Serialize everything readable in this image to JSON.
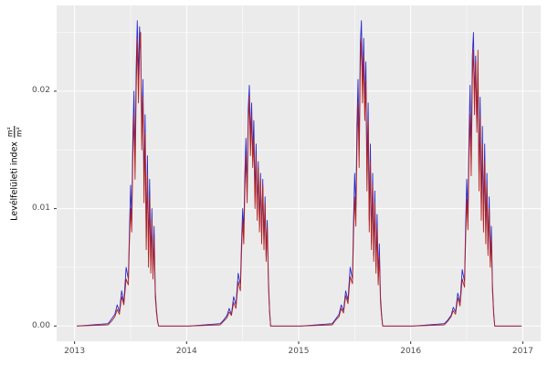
{
  "colors": {
    "figure_bg": "#FFFFFF",
    "panel_bg": "#EBEBEB",
    "grid_major": "#FFFFFF",
    "grid_minor": "#FFFFFF",
    "axis_text": "#4D4D4D",
    "tick_mark": "#333333",
    "series_blue": "#2929CC",
    "series_red": "#B22222"
  },
  "chart_data": {
    "type": "line",
    "title": "",
    "xlabel": "",
    "ylabel_text": "Levélfelületi index",
    "ylabel_frac_numerator": "m²",
    "ylabel_frac_denominator": "m²",
    "grid": true,
    "legend": "none",
    "xlim": [
      2012.84,
      2017.16
    ],
    "ylim": [
      -0.0013,
      0.0273
    ],
    "x_ticks": [
      2013,
      2014,
      2015,
      2016,
      2017
    ],
    "x_tick_labels": [
      "2013",
      "2014",
      "2015",
      "2016",
      "2017"
    ],
    "x_minor_ticks": [
      2013.5,
      2014.5,
      2015.5,
      2016.5
    ],
    "y_ticks": [
      0,
      0.01,
      0.02
    ],
    "y_tick_labels": [
      "0.00",
      "0.01",
      "0.02"
    ],
    "y_minor_ticks": [
      0.005,
      0.015,
      0.025
    ],
    "series": [
      {
        "name": "series-blue",
        "key": "blue",
        "color": "#2929CC"
      },
      {
        "name": "series-red",
        "key": "red",
        "color": "#B22222"
      }
    ],
    "season_offsets": [
      0.02,
      0.3,
      0.33,
      0.36,
      0.38,
      0.4,
      0.42,
      0.44,
      0.46,
      0.48,
      0.49,
      0.5,
      0.51,
      0.52,
      0.53,
      0.54,
      0.55,
      0.56,
      0.57,
      0.58,
      0.59,
      0.6,
      0.61,
      0.62,
      0.63,
      0.64,
      0.65,
      0.66,
      0.67,
      0.68,
      0.69,
      0.7,
      0.71,
      0.72,
      0.73,
      0.74,
      0.75,
      0.99
    ],
    "seasons": [
      {
        "year": 2013,
        "blue": [
          0,
          0.0002,
          0.0006,
          0.001,
          0.0018,
          0.0012,
          0.003,
          0.002,
          0.005,
          0.004,
          0.008,
          0.012,
          0.009,
          0.016,
          0.02,
          0.014,
          0.022,
          0.026,
          0.021,
          0.0255,
          0.0235,
          0.0165,
          0.021,
          0.012,
          0.018,
          0.0075,
          0.0145,
          0.006,
          0.0125,
          0.0055,
          0.01,
          0.0045,
          0.0085,
          0.003,
          0.0015,
          0.0005,
          0,
          0
        ],
        "red": [
          0,
          0.0001,
          0.0004,
          0.0008,
          0.0014,
          0.001,
          0.0025,
          0.0018,
          0.004,
          0.0035,
          0.007,
          0.01,
          0.008,
          0.014,
          0.018,
          0.0125,
          0.02,
          0.0245,
          0.019,
          0.0235,
          0.025,
          0.015,
          0.0195,
          0.0105,
          0.0165,
          0.0065,
          0.013,
          0.005,
          0.011,
          0.0045,
          0.009,
          0.004,
          0.0075,
          0.0025,
          0.0012,
          0.0004,
          0,
          0
        ]
      },
      {
        "year": 2014,
        "blue": [
          0,
          0.0002,
          0.0005,
          0.0009,
          0.0015,
          0.001,
          0.0025,
          0.0018,
          0.0045,
          0.0035,
          0.007,
          0.01,
          0.008,
          0.013,
          0.016,
          0.0115,
          0.0185,
          0.0205,
          0.016,
          0.019,
          0.0145,
          0.0175,
          0.011,
          0.0155,
          0.0095,
          0.014,
          0.0085,
          0.013,
          0.0075,
          0.0125,
          0.007,
          0.011,
          0.006,
          0.009,
          0.004,
          0.0015,
          0,
          0
        ],
        "red": [
          0,
          0.0001,
          0.0004,
          0.0007,
          0.0012,
          0.0009,
          0.002,
          0.0015,
          0.0038,
          0.003,
          0.006,
          0.009,
          0.007,
          0.0115,
          0.0145,
          0.0105,
          0.017,
          0.0195,
          0.0145,
          0.018,
          0.0135,
          0.016,
          0.01,
          0.0145,
          0.009,
          0.0135,
          0.008,
          0.0125,
          0.007,
          0.012,
          0.0065,
          0.0105,
          0.0055,
          0.0085,
          0.0035,
          0.0012,
          0,
          0
        ]
      },
      {
        "year": 2015,
        "blue": [
          0,
          0.0002,
          0.0006,
          0.001,
          0.0018,
          0.0013,
          0.003,
          0.0022,
          0.005,
          0.004,
          0.009,
          0.013,
          0.01,
          0.017,
          0.021,
          0.015,
          0.024,
          0.026,
          0.0205,
          0.0245,
          0.019,
          0.0225,
          0.013,
          0.019,
          0.009,
          0.0155,
          0.007,
          0.013,
          0.006,
          0.0115,
          0.005,
          0.0095,
          0.004,
          0.007,
          0.0025,
          0.001,
          0,
          0
        ],
        "red": [
          0,
          0.0001,
          0.0005,
          0.0008,
          0.0015,
          0.0011,
          0.0026,
          0.0019,
          0.0042,
          0.0036,
          0.0075,
          0.011,
          0.0085,
          0.015,
          0.019,
          0.0135,
          0.022,
          0.0245,
          0.019,
          0.023,
          0.0175,
          0.021,
          0.0115,
          0.0175,
          0.008,
          0.014,
          0.0065,
          0.012,
          0.0055,
          0.0105,
          0.0045,
          0.0085,
          0.0035,
          0.006,
          0.002,
          0.0008,
          0,
          0
        ]
      },
      {
        "year": 2016,
        "blue": [
          0,
          0.0002,
          0.0005,
          0.0009,
          0.0016,
          0.0012,
          0.0028,
          0.002,
          0.0048,
          0.0038,
          0.0085,
          0.0125,
          0.0095,
          0.016,
          0.0205,
          0.0145,
          0.023,
          0.025,
          0.0195,
          0.023,
          0.017,
          0.0215,
          0.0125,
          0.0195,
          0.01,
          0.017,
          0.009,
          0.0155,
          0.008,
          0.013,
          0.0065,
          0.011,
          0.0055,
          0.0085,
          0.0035,
          0.0012,
          0,
          0
        ],
        "red": [
          0,
          0.0001,
          0.0004,
          0.0008,
          0.0013,
          0.001,
          0.0024,
          0.0017,
          0.004,
          0.0033,
          0.0072,
          0.0108,
          0.0082,
          0.0142,
          0.018,
          0.0128,
          0.021,
          0.0235,
          0.018,
          0.0225,
          0.0165,
          0.0235,
          0.0115,
          0.018,
          0.009,
          0.0155,
          0.008,
          0.014,
          0.007,
          0.012,
          0.006,
          0.01,
          0.005,
          0.0075,
          0.003,
          0.001,
          0,
          0
        ]
      }
    ]
  }
}
